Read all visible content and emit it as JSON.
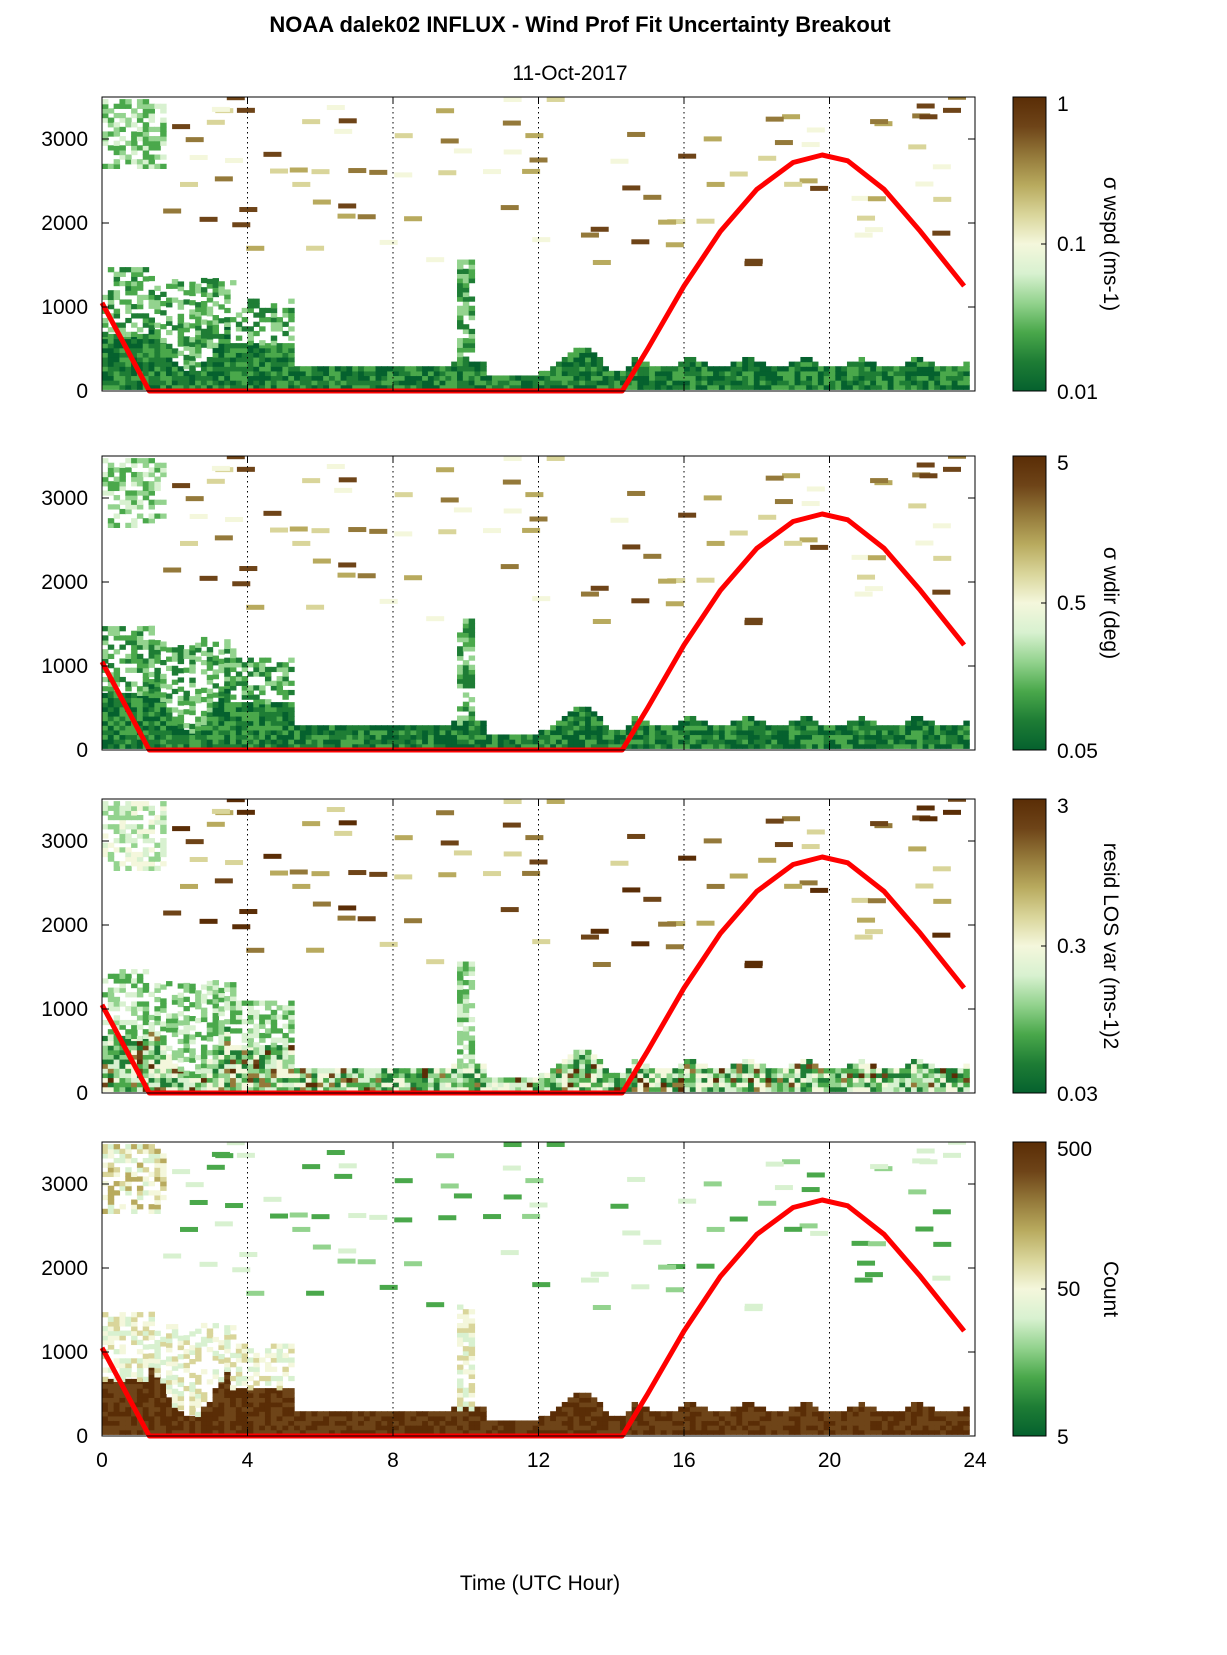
{
  "figure": {
    "title": "NOAA dalek02 INFLUX - Wind Prof Fit Uncertainty Breakout",
    "subtitle": "11-Oct-2017",
    "xlabel": "Time (UTC Hour)"
  },
  "colors": {
    "sun_line": "#ff0000",
    "grid": "#000000",
    "colormap": [
      "#05612e",
      "#1e7d35",
      "#4aa84b",
      "#93d38e",
      "#d8f1d0",
      "#f4f7dc",
      "#d9d59a",
      "#b8aa5e",
      "#94793a",
      "#6e4418",
      "#5a2d06"
    ]
  },
  "chart_data": [
    {
      "type": "heatmap",
      "quantity": "σ wspd",
      "colorbar": {
        "label": "σ wspd (ms-1)",
        "ticks": [
          "1",
          "0.1",
          "0.01"
        ],
        "scale": "log"
      },
      "x": {
        "range": [
          0,
          24
        ],
        "ticks": [
          0,
          4,
          8,
          12,
          16,
          20,
          24
        ]
      },
      "y": {
        "range": [
          0,
          3500
        ],
        "ticks": [
          0,
          1000,
          2000,
          3000
        ]
      },
      "sun_elevation_curve": {
        "x": [
          0,
          1.3,
          14.3,
          15,
          16,
          17,
          18,
          19,
          19.8,
          20.5,
          21.5,
          22.5,
          23.7
        ],
        "y": [
          1050,
          0,
          0,
          500,
          1250,
          1900,
          2400,
          2720,
          2810,
          2740,
          2400,
          1900,
          1250
        ]
      }
    },
    {
      "type": "heatmap",
      "quantity": "σ wdir",
      "colorbar": {
        "label": "σ wdir (deg)",
        "ticks": [
          "5",
          "0.5",
          "0.05"
        ],
        "scale": "log"
      },
      "x": {
        "range": [
          0,
          24
        ],
        "ticks": [
          0,
          4,
          8,
          12,
          16,
          20,
          24
        ]
      },
      "y": {
        "range": [
          0,
          3500
        ],
        "ticks": [
          0,
          1000,
          2000,
          3000
        ]
      },
      "sun_elevation_curve": {
        "x": [
          0,
          1.3,
          14.3,
          15,
          16,
          17,
          18,
          19,
          19.8,
          20.5,
          21.5,
          22.5,
          23.7
        ],
        "y": [
          1050,
          0,
          0,
          500,
          1250,
          1900,
          2400,
          2720,
          2810,
          2740,
          2400,
          1900,
          1250
        ]
      }
    },
    {
      "type": "heatmap",
      "quantity": "resid LOS var",
      "colorbar": {
        "label": "resid LOS var (ms-1)2",
        "ticks": [
          "3",
          "0.3",
          "0.03"
        ],
        "scale": "log"
      },
      "x": {
        "range": [
          0,
          24
        ],
        "ticks": [
          0,
          4,
          8,
          12,
          16,
          20,
          24
        ]
      },
      "y": {
        "range": [
          0,
          3500
        ],
        "ticks": [
          0,
          1000,
          2000,
          3000
        ]
      },
      "sun_elevation_curve": {
        "x": [
          0,
          1.3,
          14.3,
          15,
          16,
          17,
          18,
          19,
          19.8,
          20.5,
          21.5,
          22.5,
          23.7
        ],
        "y": [
          1050,
          0,
          0,
          500,
          1250,
          1900,
          2400,
          2720,
          2810,
          2740,
          2400,
          1900,
          1250
        ]
      }
    },
    {
      "type": "heatmap",
      "quantity": "Count",
      "colorbar": {
        "label": "Count",
        "ticks": [
          "500",
          "50",
          "5"
        ],
        "scale": "log"
      },
      "x": {
        "range": [
          0,
          24
        ],
        "ticks": [
          0,
          4,
          8,
          12,
          16,
          20,
          24
        ]
      },
      "y": {
        "range": [
          0,
          3500
        ],
        "ticks": [
          0,
          1000,
          2000,
          3000
        ]
      },
      "sun_elevation_curve": {
        "x": [
          0,
          1.3,
          14.3,
          15,
          16,
          17,
          18,
          19,
          19.8,
          20.5,
          21.5,
          22.5,
          23.7
        ],
        "y": [
          1050,
          0,
          0,
          500,
          1250,
          1900,
          2400,
          2720,
          2810,
          2740,
          2400,
          1900,
          1250
        ]
      }
    }
  ]
}
